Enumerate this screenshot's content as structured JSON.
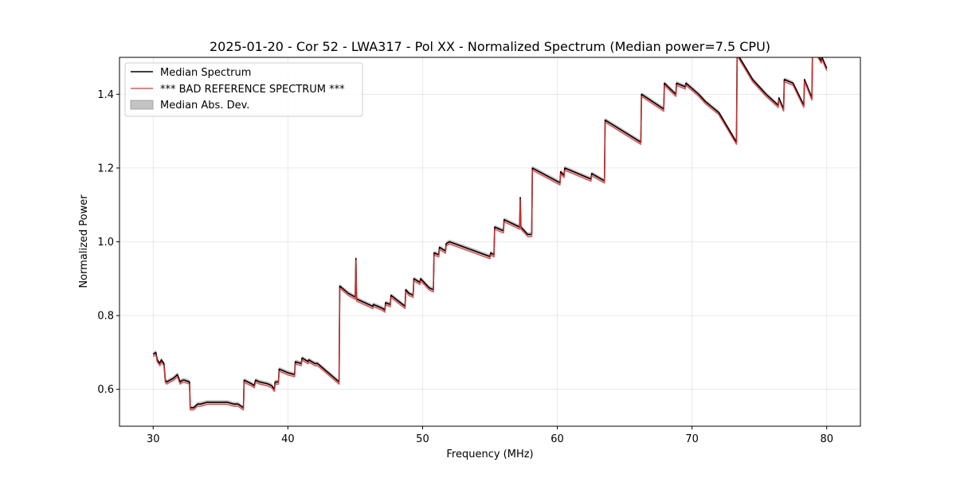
{
  "chart_data": {
    "type": "line",
    "title": "2025-01-20 - Cor 52 - LWA317 - Pol XX - Normalized Spectrum (Median power=7.5 CPU)",
    "xlabel": "Frequency (MHz)",
    "ylabel": "Normalized Power",
    "xlim": [
      27.5,
      82.5
    ],
    "ylim": [
      0.5,
      1.5
    ],
    "xticks": [
      30,
      40,
      50,
      60,
      70,
      80
    ],
    "xtick_labels": [
      "30",
      "40",
      "50",
      "60",
      "70",
      "80"
    ],
    "yticks": [
      0.6,
      0.8,
      1.0,
      1.2,
      1.4
    ],
    "ytick_labels": [
      "0.6",
      "0.8",
      "1.0",
      "1.2",
      "1.4"
    ],
    "grid": true,
    "legend_position": "top-left",
    "legend": [
      "Median Spectrum",
      "*** BAD REFERENCE SPECTRUM ***",
      "Median Abs. Dev."
    ],
    "colors": {
      "median": "#000000",
      "bad": "#e8383a",
      "mad": "#b4b4b4"
    },
    "mad_halfwidth": 0.006,
    "series": [
      {
        "name": "Median Spectrum",
        "x": [
          30.0,
          30.2,
          30.3,
          30.5,
          30.6,
          30.8,
          30.9,
          31.0,
          31.5,
          31.8,
          31.9,
          32.0,
          32.2,
          32.3,
          32.7,
          32.75,
          33.0,
          33.3,
          33.5,
          34.0,
          35.0,
          35.5,
          36.0,
          36.3,
          36.7,
          36.75,
          37.3,
          37.5,
          37.6,
          37.9,
          38.5,
          38.8,
          39.0,
          39.05,
          39.3,
          39.35,
          40.0,
          40.5,
          40.55,
          41.0,
          41.05,
          41.5,
          41.55,
          42.0,
          42.2,
          43.8,
          43.85,
          44.5,
          45.0,
          45.05,
          45.1,
          45.7,
          46.3,
          46.35,
          47.0,
          47.2,
          47.25,
          47.6,
          47.65,
          48.7,
          48.75,
          49.0,
          49.3,
          49.35,
          49.8,
          49.85,
          50.5,
          50.8,
          50.85,
          51.2,
          51.25,
          51.7,
          51.75,
          52.0,
          55.0,
          55.05,
          55.3,
          55.35,
          56.0,
          56.05,
          57.2,
          57.25,
          57.3,
          57.8,
          58.1,
          58.15,
          60.2,
          60.25,
          60.5,
          60.55,
          62.5,
          62.55,
          63.5,
          63.55,
          66.2,
          66.25,
          67.9,
          67.95,
          68.8,
          68.85,
          69.5,
          69.55,
          70.5,
          71.0,
          72.0,
          73.3,
          73.35,
          74.5,
          75.5,
          76.4,
          76.45,
          76.8,
          76.85,
          77.5,
          78.3,
          78.35,
          78.9,
          78.95,
          79.6,
          79.65,
          80.0
        ],
        "values": [
          0.695,
          0.7,
          0.68,
          0.67,
          0.68,
          0.67,
          0.625,
          0.62,
          0.63,
          0.64,
          0.63,
          0.62,
          0.625,
          0.625,
          0.62,
          0.55,
          0.55,
          0.56,
          0.56,
          0.565,
          0.565,
          0.565,
          0.56,
          0.56,
          0.55,
          0.625,
          0.615,
          0.61,
          0.625,
          0.62,
          0.615,
          0.61,
          0.6,
          0.62,
          0.62,
          0.655,
          0.645,
          0.64,
          0.675,
          0.67,
          0.685,
          0.675,
          0.68,
          0.67,
          0.67,
          0.62,
          0.88,
          0.86,
          0.85,
          0.955,
          0.845,
          0.835,
          0.825,
          0.83,
          0.82,
          0.815,
          0.835,
          0.83,
          0.855,
          0.825,
          0.87,
          0.86,
          0.855,
          0.9,
          0.89,
          0.9,
          0.875,
          0.87,
          0.97,
          0.965,
          0.985,
          0.975,
          0.995,
          1.0,
          0.96,
          0.97,
          0.965,
          1.04,
          1.03,
          1.06,
          1.04,
          1.12,
          1.04,
          1.02,
          1.02,
          1.2,
          1.16,
          1.19,
          1.18,
          1.2,
          1.17,
          1.185,
          1.165,
          1.33,
          1.27,
          1.4,
          1.36,
          1.43,
          1.4,
          1.43,
          1.42,
          1.43,
          1.4,
          1.38,
          1.35,
          1.27,
          1.51,
          1.44,
          1.4,
          1.37,
          1.39,
          1.36,
          1.44,
          1.43,
          1.37,
          1.44,
          1.39,
          1.53,
          1.49,
          1.5,
          1.47
        ]
      },
      {
        "name": "*** BAD REFERENCE SPECTRUM ***",
        "offset": -0.006
      }
    ]
  }
}
